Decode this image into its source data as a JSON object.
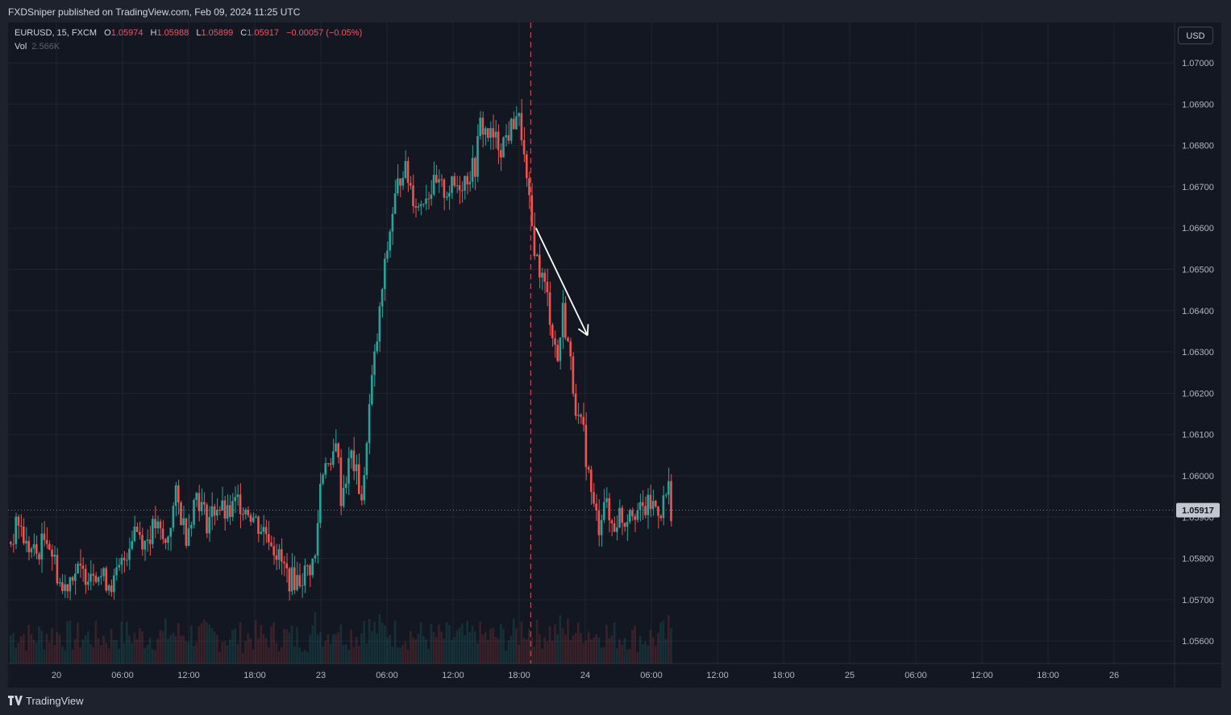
{
  "header": {
    "published": "FXDSniper published on TradingView.com, Feb 09, 2024 11:25 UTC"
  },
  "legend": {
    "symbol": "EURUSD, 15, FXCM",
    "open_label": "O",
    "open": "1.05974",
    "high_label": "H",
    "high": "1.05988",
    "low_label": "L",
    "low": "1.05899",
    "close_label": "C",
    "close": "1.05917",
    "change": "−0.00057 (−0.05%)",
    "vol_label": "Vol",
    "vol_value": "2.566K"
  },
  "currency_button": "USD",
  "brand": "TradingView",
  "colors": {
    "background": "#131722",
    "up": "#26a69a",
    "down": "#ef5350",
    "grid": "#1f2430",
    "price_line": "#787b86",
    "event_line": "#b2494e",
    "annotation": "#ffffff"
  },
  "chart_data": {
    "type": "candlestick",
    "symbol": "EURUSD",
    "timeframe": "15",
    "y_ticks": [
      "1.07000",
      "1.06900",
      "1.06800",
      "1.06700",
      "1.06600",
      "1.06500",
      "1.06400",
      "1.06300",
      "1.06200",
      "1.06100",
      "1.06000",
      "1.05900",
      "1.05800",
      "1.05700",
      "1.05600"
    ],
    "ylim": [
      1.0552,
      1.0712
    ],
    "x_ticks": [
      "20",
      "06:00",
      "12:00",
      "18:00",
      "23",
      "06:00",
      "12:00",
      "18:00",
      "24",
      "06:00",
      "12:00",
      "18:00",
      "25",
      "06:00",
      "12:00",
      "18:00",
      "26"
    ],
    "last_price": "1.05917",
    "price_path": [
      [
        0,
        1.0584
      ],
      [
        3,
        1.0589
      ],
      [
        6,
        1.0583
      ],
      [
        10,
        1.0581
      ],
      [
        14,
        1.0586
      ],
      [
        17,
        1.0579
      ],
      [
        20,
        1.0572
      ],
      [
        24,
        1.0577
      ],
      [
        28,
        1.0576
      ],
      [
        32,
        1.0578
      ],
      [
        36,
        1.0575
      ],
      [
        40,
        1.0574
      ],
      [
        44,
        1.058
      ],
      [
        48,
        1.0588
      ],
      [
        52,
        1.0584
      ],
      [
        56,
        1.0588
      ],
      [
        60,
        1.0583
      ],
      [
        64,
        1.0595
      ],
      [
        68,
        1.0586
      ],
      [
        72,
        1.0596
      ],
      [
        76,
        1.0589
      ],
      [
        80,
        1.0593
      ],
      [
        84,
        1.059
      ],
      [
        88,
        1.0594
      ],
      [
        92,
        1.0592
      ],
      [
        96,
        1.0588
      ],
      [
        100,
        1.0586
      ],
      [
        104,
        1.058
      ],
      [
        108,
        1.0575
      ],
      [
        112,
        1.0575
      ],
      [
        116,
        1.0578
      ],
      [
        118,
        1.058
      ],
      [
        120,
        1.0598
      ],
      [
        122,
        1.0605
      ],
      [
        124,
        1.06
      ],
      [
        126,
        1.061
      ],
      [
        128,
        1.0595
      ],
      [
        130,
        1.06
      ],
      [
        132,
        1.0605
      ],
      [
        134,
        1.06
      ],
      [
        136,
        1.0595
      ],
      [
        137,
        1.0598
      ],
      [
        138,
        1.061
      ],
      [
        140,
        1.0623
      ],
      [
        142,
        1.0633
      ],
      [
        144,
        1.0645
      ],
      [
        146,
        1.0655
      ],
      [
        148,
        1.0664
      ],
      [
        150,
        1.067
      ],
      [
        152,
        1.0675
      ],
      [
        154,
        1.0672
      ],
      [
        156,
        1.0668
      ],
      [
        158,
        1.0665
      ],
      [
        160,
        1.0668
      ],
      [
        164,
        1.067
      ],
      [
        168,
        1.0669
      ],
      [
        172,
        1.067
      ],
      [
        176,
        1.0672
      ],
      [
        180,
        1.0675
      ],
      [
        182,
        1.0685
      ],
      [
        186,
        1.0682
      ],
      [
        190,
        1.068
      ],
      [
        194,
        1.0684
      ],
      [
        196,
        1.0688
      ],
      [
        198,
        1.0683
      ],
      [
        200,
        1.067
      ],
      [
        202,
        1.066
      ],
      [
        204,
        1.0652
      ],
      [
        206,
        1.0648
      ],
      [
        208,
        1.0643
      ],
      [
        210,
        1.0635
      ],
      [
        212,
        1.0628
      ],
      [
        214,
        1.064
      ],
      [
        216,
        1.0632
      ],
      [
        218,
        1.0622
      ],
      [
        220,
        1.0613
      ],
      [
        222,
        1.061
      ],
      [
        224,
        1.06
      ],
      [
        226,
        1.0592
      ],
      [
        228,
        1.0588
      ],
      [
        230,
        1.0595
      ],
      [
        232,
        1.0589
      ],
      [
        234,
        1.0588
      ],
      [
        236,
        1.0591
      ],
      [
        238,
        1.0589
      ],
      [
        240,
        1.0593
      ],
      [
        244,
        1.0591
      ],
      [
        248,
        1.0593
      ],
      [
        252,
        1.0592
      ],
      [
        255,
        1.0597
      ],
      [
        256,
        1.0592
      ]
    ],
    "annotations": [
      {
        "type": "vertical-line",
        "style": "dashed"
      },
      {
        "type": "arrow",
        "from": [
          1.066
        ],
        "to": [
          1.0634
        ],
        "direction": "down"
      },
      {
        "type": "horizontal-line",
        "style": "dotted",
        "value": 1.05917
      }
    ]
  }
}
